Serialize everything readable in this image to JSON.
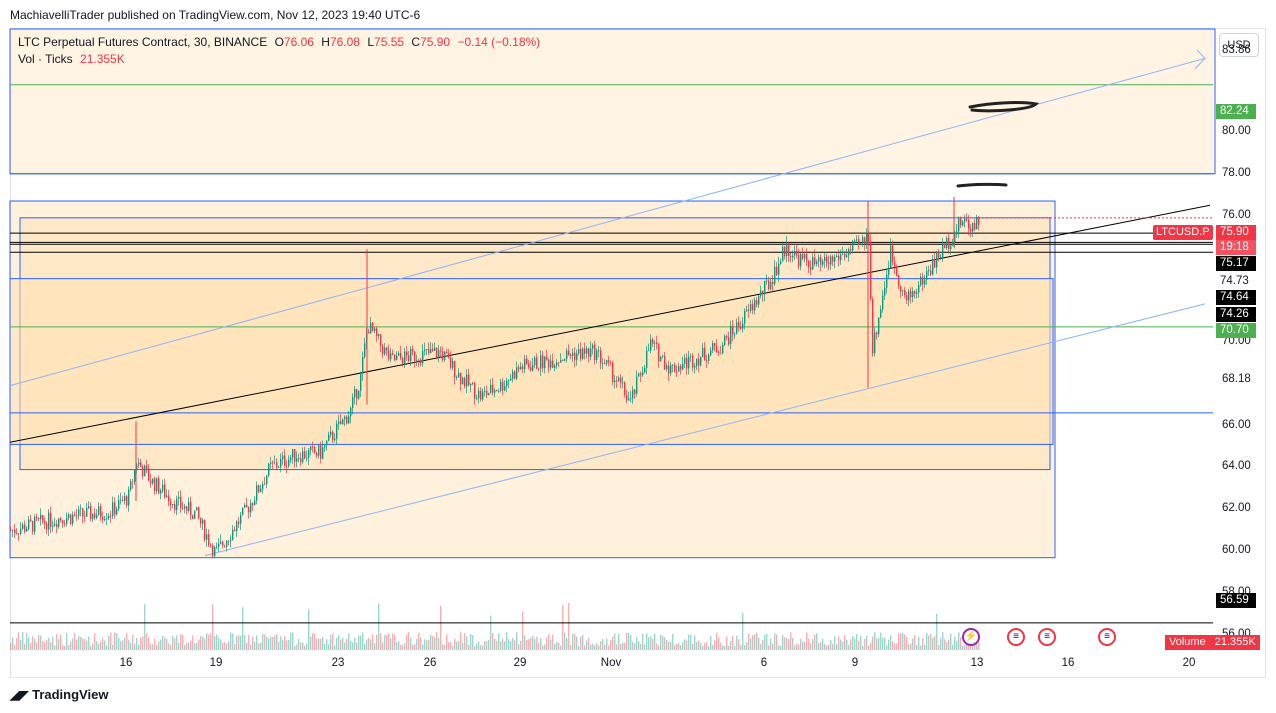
{
  "header": {
    "text": "MachiavelliTrader published on TradingView.com, Nov 12, 2023 19:40 UTC-6"
  },
  "legend": {
    "symbol": "LTC Perpetual Futures Contract, 30, BINANCE",
    "o_label": "O",
    "o_value": "76.06",
    "h_label": "H",
    "h_value": "76.08",
    "l_label": "L",
    "l_value": "75.55",
    "c_label": "C",
    "c_value": "75.90",
    "change": "−0.14 (−0.18%)",
    "vol_label": "Vol · Ticks",
    "vol_value": "21.355K"
  },
  "currency_button": "USD",
  "symbol_tag": "LTCUSD.P",
  "volume_tag": {
    "label": "Volume",
    "value": "21.355K"
  },
  "footer": {
    "brand": "TradingView"
  },
  "colors": {
    "up": "#089981",
    "down": "#f23645",
    "accent": "#2962ff",
    "zone": "#ffe0b2"
  },
  "chart_data": {
    "type": "candlestick",
    "symbol": "LTCUSD.P",
    "timeframe": "30",
    "x_ticks": [
      "16",
      "19",
      "23",
      "26",
      "29",
      "Nov",
      "6",
      "9",
      "13",
      "16",
      "20"
    ],
    "y_ticks": [
      "83.86",
      "80.00",
      "78.00",
      "76.00",
      "70.00",
      "68.18",
      "66.00",
      "64.00",
      "62.00",
      "60.00",
      "58.00",
      "56.00"
    ],
    "ylim": [
      55.3,
      84.9
    ],
    "price_tags": [
      {
        "value": "82.24",
        "style": "green"
      },
      {
        "value": "75.90",
        "style": "red"
      },
      {
        "value": "19:18",
        "style": "red-light"
      },
      {
        "value": "75.17",
        "style": "black"
      },
      {
        "value": "74.73",
        "style": "plain"
      },
      {
        "value": "74.64",
        "style": "black"
      },
      {
        "value": "74.26",
        "style": "black"
      },
      {
        "value": "70.70",
        "style": "green"
      },
      {
        "value": "56.59",
        "style": "black"
      }
    ],
    "horizontal_levels": [
      {
        "price": 82.24,
        "color": "#4caf50"
      },
      {
        "price": 78.0,
        "color": "#2962ff"
      },
      {
        "price": 75.17,
        "color": "#000000"
      },
      {
        "price": 74.73,
        "color": "#000000"
      },
      {
        "price": 74.64,
        "color": "#000000"
      },
      {
        "price": 74.26,
        "color": "#000000"
      },
      {
        "price": 70.7,
        "color": "#4caf50"
      },
      {
        "price": 66.6,
        "color": "#2962ff"
      },
      {
        "price": 56.59,
        "color": "#000000"
      }
    ],
    "price_path_keypoints": [
      [
        0,
        61.0
      ],
      [
        50,
        61.6
      ],
      [
        100,
        61.9
      ],
      [
        118,
        62.6
      ],
      [
        126,
        64.3
      ],
      [
        140,
        63.4
      ],
      [
        165,
        62.3
      ],
      [
        185,
        61.8
      ],
      [
        205,
        59.9
      ],
      [
        235,
        61.9
      ],
      [
        260,
        64.0
      ],
      [
        285,
        64.6
      ],
      [
        310,
        64.7
      ],
      [
        320,
        65.4
      ],
      [
        340,
        66.7
      ],
      [
        350,
        68.3
      ],
      [
        357,
        70.8
      ],
      [
        365,
        70.2
      ],
      [
        380,
        69.1
      ],
      [
        400,
        69.3
      ],
      [
        430,
        69.5
      ],
      [
        450,
        68.3
      ],
      [
        470,
        67.4
      ],
      [
        490,
        67.9
      ],
      [
        510,
        68.8
      ],
      [
        540,
        69.1
      ],
      [
        560,
        69.4
      ],
      [
        585,
        69.5
      ],
      [
        600,
        68.6
      ],
      [
        620,
        67.1
      ],
      [
        640,
        69.9
      ],
      [
        660,
        68.7
      ],
      [
        690,
        69.3
      ],
      [
        710,
        69.8
      ],
      [
        730,
        70.9
      ],
      [
        760,
        72.9
      ],
      [
        775,
        74.5
      ],
      [
        790,
        73.9
      ],
      [
        810,
        73.6
      ],
      [
        830,
        74.1
      ],
      [
        850,
        74.6
      ],
      [
        858,
        75.1
      ],
      [
        862,
        69.6
      ],
      [
        870,
        71.7
      ],
      [
        880,
        74.3
      ],
      [
        895,
        71.9
      ],
      [
        910,
        72.8
      ],
      [
        925,
        73.9
      ],
      [
        938,
        74.8
      ],
      [
        945,
        75.3
      ],
      [
        952,
        75.8
      ],
      [
        960,
        75.5
      ],
      [
        968,
        75.9
      ]
    ],
    "drawings": {
      "up_channel_upper": [
        [
          0,
          67.9
        ],
        [
          1195,
          83.5
        ]
      ],
      "up_channel_lower": [
        [
          195,
          59.8
        ],
        [
          1195,
          71.8
        ]
      ],
      "trend_line": [
        [
          0,
          65.2
        ],
        [
          1200,
          76.5
        ]
      ],
      "zones": [
        {
          "x0": 0,
          "x1": 1205,
          "y0": 84.9,
          "y1": 78.0,
          "alpha": 0.35
        },
        {
          "x0": 0,
          "x1": 1045,
          "y0": 76.7,
          "y1": 59.7,
          "alpha": 0.45
        },
        {
          "x0": 10,
          "x1": 1040,
          "y0": 75.9,
          "y1": 63.9,
          "alpha": 0.5
        },
        {
          "x0": 0,
          "x1": 1043,
          "y0": 73.0,
          "y1": 65.1,
          "alpha": 0.55
        }
      ]
    }
  }
}
